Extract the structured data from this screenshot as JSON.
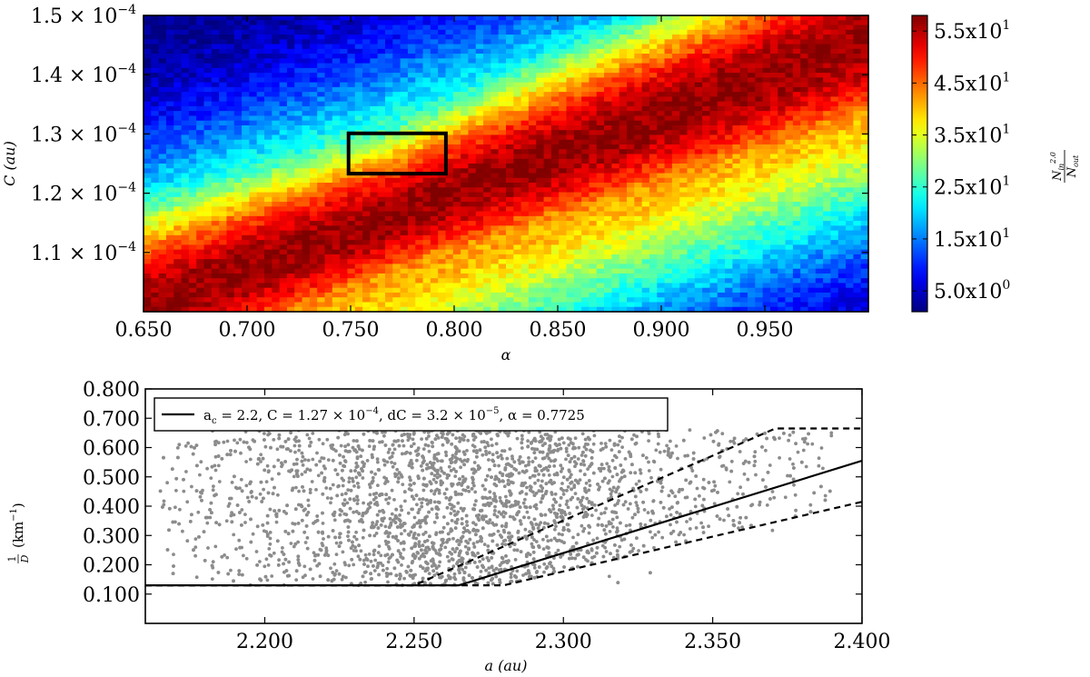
{
  "chart_data": [
    {
      "type": "heatmap",
      "xlabel": "α",
      "ylabel": "C (au)",
      "xlim": [
        0.65,
        1.0
      ],
      "ylim": [
        0.0001,
        0.00015
      ],
      "x_ticks": [
        {
          "value": 0.65,
          "label": "0.650"
        },
        {
          "value": 0.7,
          "label": "0.700"
        },
        {
          "value": 0.75,
          "label": "0.750"
        },
        {
          "value": 0.8,
          "label": "0.800"
        },
        {
          "value": 0.85,
          "label": "0.850"
        },
        {
          "value": 0.9,
          "label": "0.900"
        },
        {
          "value": 0.95,
          "label": "0.950"
        }
      ],
      "y_ticks": [
        {
          "value": 0.00011,
          "mantissa": "1.1",
          "exponent": "−4"
        },
        {
          "value": 0.00012,
          "mantissa": "1.2",
          "exponent": "−4"
        },
        {
          "value": 0.00013,
          "mantissa": "1.3",
          "exponent": "−4"
        },
        {
          "value": 0.00014,
          "mantissa": "1.4",
          "exponent": "−4"
        },
        {
          "value": 0.00015,
          "mantissa": "1.5",
          "exponent": "−4"
        }
      ],
      "colorbar": {
        "label_num": "N",
        "label_num_sub": "in",
        "label_num_sup": "2.0",
        "label_den": "N",
        "label_den_sub": "out",
        "vmin": 1.0,
        "vmax": 58.0,
        "colormap": "jet",
        "ticks": [
          {
            "value": 5.0,
            "label": "5.0x10",
            "exp": "0"
          },
          {
            "value": 15.0,
            "label": "1.5x10",
            "exp": "1"
          },
          {
            "value": 25.0,
            "label": "2.5x10",
            "exp": "1"
          },
          {
            "value": 35.0,
            "label": "3.5x10",
            "exp": "1"
          },
          {
            "value": 45.0,
            "label": "4.5x10",
            "exp": "1"
          },
          {
            "value": 55.0,
            "label": "5.5x10",
            "exp": "1"
          }
        ]
      },
      "grid_cells": {
        "nx": 96,
        "ny": 62
      },
      "ridges": [
        {
          "alpha0": 0.65,
          "c0": 0.0001005,
          "alpha1": 1.0,
          "c1": 0.000146,
          "peak": 57,
          "width": 6e-06
        },
        {
          "alpha0": 0.65,
          "c0": 9.65e-05,
          "alpha1": 1.0,
          "c1": 0.00014,
          "peak": 44,
          "width": 7e-06
        }
      ],
      "annotation_box": {
        "alpha": [
          0.749,
          0.796
        ],
        "c": [
          0.0001233,
          0.0001301
        ],
        "color": "#000000"
      }
    },
    {
      "type": "scatter",
      "xlabel": "a (au)",
      "ylabel_frac_num": "1",
      "ylabel_frac_den": "D",
      "ylabel_unit": "(km",
      "ylabel_unit_sup": "−1",
      "ylabel_unit_close": ")",
      "xlim": [
        2.16,
        2.4
      ],
      "ylim": [
        0.0,
        0.8
      ],
      "x_ticks": [
        {
          "value": 2.2,
          "label": "2.200"
        },
        {
          "value": 2.25,
          "label": "2.250"
        },
        {
          "value": 2.3,
          "label": "2.300"
        },
        {
          "value": 2.35,
          "label": "2.350"
        },
        {
          "value": 2.4,
          "label": "2.400"
        }
      ],
      "y_ticks": [
        {
          "value": 0.1,
          "label": "0.100"
        },
        {
          "value": 0.2,
          "label": "0.200"
        },
        {
          "value": 0.3,
          "label": "0.300"
        },
        {
          "value": 0.4,
          "label": "0.400"
        },
        {
          "value": 0.5,
          "label": "0.500"
        },
        {
          "value": 0.6,
          "label": "0.600"
        },
        {
          "value": 0.7,
          "label": "0.700"
        },
        {
          "value": 0.8,
          "label": "0.800"
        }
      ],
      "scatter": {
        "color": "#8c8c8c",
        "count": 3600,
        "x_range": [
          2.165,
          2.39
        ],
        "y_range": [
          0.13,
          0.665
        ]
      },
      "lines": [
        {
          "name": "solid",
          "dash": false,
          "points": [
            [
              2.16,
              0.13
            ],
            [
              2.265,
              0.13
            ],
            [
              2.4,
              0.555
            ]
          ]
        },
        {
          "name": "upper-dashed",
          "dash": true,
          "points": [
            [
              2.16,
              0.13
            ],
            [
              2.25,
              0.13
            ],
            [
              2.371,
              0.665
            ],
            [
              2.4,
              0.665
            ]
          ]
        },
        {
          "name": "lower-dashed",
          "dash": true,
          "points": [
            [
              2.16,
              0.13
            ],
            [
              2.28,
              0.13
            ],
            [
              2.4,
              0.415
            ]
          ]
        }
      ],
      "legend": {
        "placement": "upper-left",
        "t1": "a",
        "t1_sub": "c",
        "t2": " = 2.2,  C = 1.27 × 10",
        "t2_sup": "−4",
        "t3": ",  dC = 3.2 × 10",
        "t3_sup": "−5",
        "t4": ",  α  =  0.7725"
      }
    }
  ]
}
